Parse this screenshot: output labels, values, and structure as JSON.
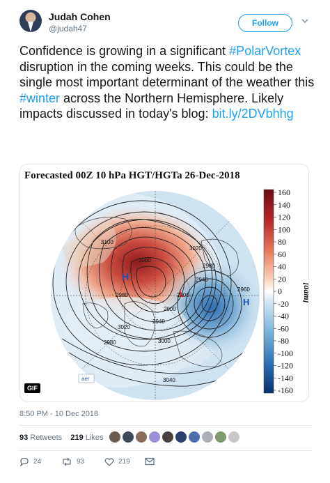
{
  "author": {
    "name": "Judah Cohen",
    "handle": "@judah47",
    "follow_label": "Follow"
  },
  "tweet": {
    "text_1": "Confidence is growing in a significant ",
    "hashtag_1": "#PolarVortex",
    "text_2": " disruption in the coming weeks. This could be the single most important determinant of the weather this ",
    "hashtag_2": "#winter",
    "text_3": " across the Northern Hemisphere. Likely impacts discussed in today's blog: ",
    "link": "bit.ly/2DVbhhg"
  },
  "media": {
    "title": "Forecasted 00Z 10 hPa HGT/HGTa 26-Dec-2018",
    "colorbar_ticks": [
      "160",
      "140",
      "120",
      "100",
      "80",
      "60",
      "40",
      "20",
      "0",
      "-20",
      "-40",
      "-60",
      "-80",
      "-100",
      "-120",
      "-140",
      "-160"
    ],
    "colorbar_unit": "[dam]",
    "contour_labels": [
      "3100",
      "3020",
      "3060",
      "2940",
      "2980",
      "2900",
      "3000",
      "3040",
      "3020",
      "2980",
      "2900",
      "2940",
      "2980",
      "2960"
    ],
    "high_marker": "H",
    "low_marker": "L",
    "logo_text": "aer",
    "badge": "GIF"
  },
  "timestamp": "8:50 PM - 10 Dec 2018",
  "stats": {
    "retweets_count": "93",
    "retweets_label": "Retweets",
    "likes_count": "219",
    "likes_label": "Likes"
  },
  "actions": {
    "replies": "24",
    "retweets": "93",
    "likes": "219"
  },
  "colors": {
    "accent": "#1da1f2",
    "text": "#14171a",
    "muted": "#657786"
  }
}
